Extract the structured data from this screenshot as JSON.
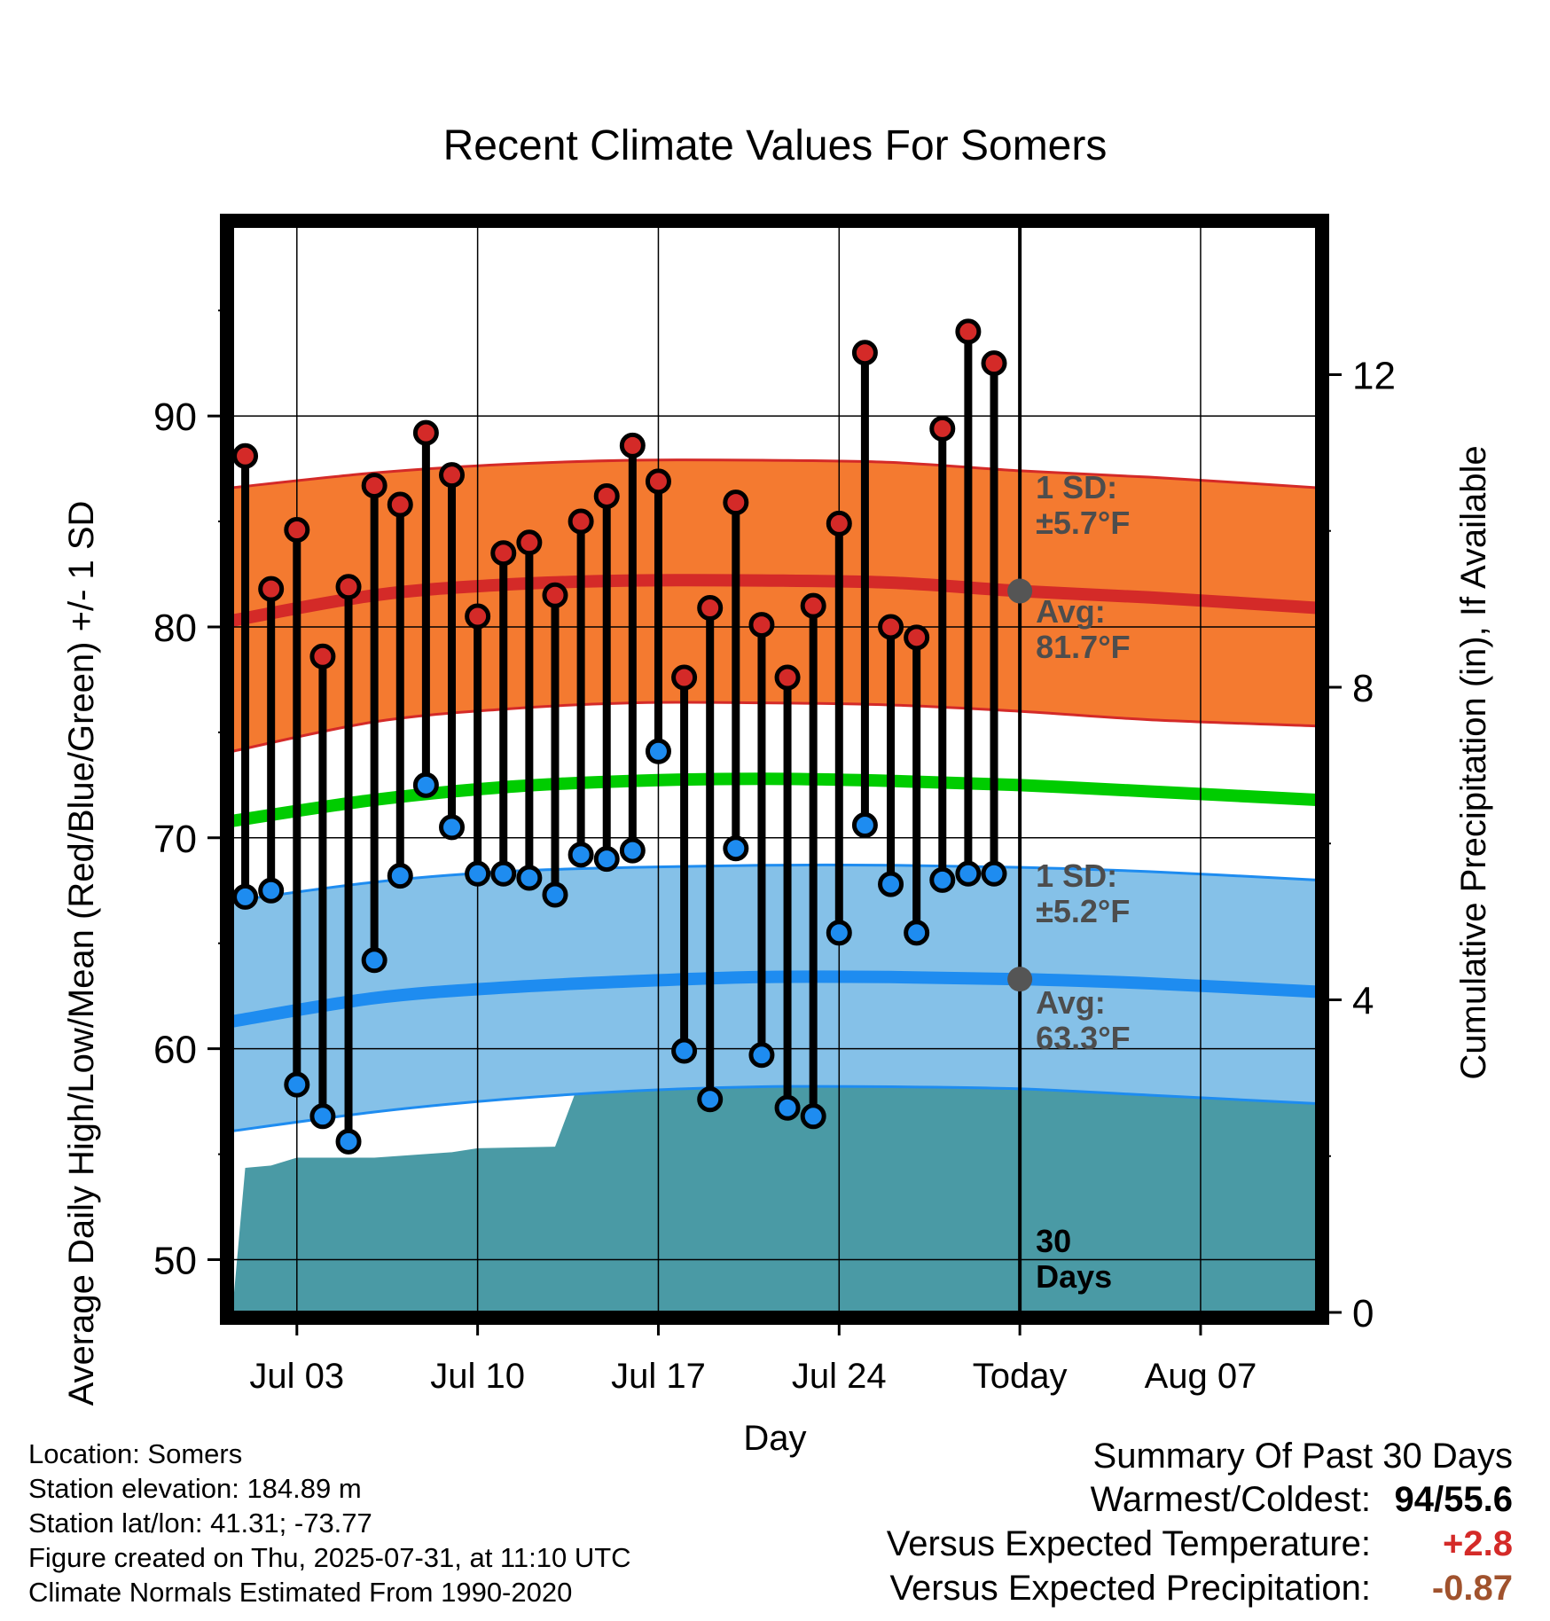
{
  "chart_data": {
    "type": "line",
    "title": "Recent Climate Values For Somers",
    "xlabel": "Day",
    "ylabel": "Average Daily High/Low/Mean (Red/Blue/Green) +/- 1 SD",
    "y2label": "Cumulative Precipitation (in), If Available",
    "xlim": [
      -0.5,
      41.5
    ],
    "ylim": [
      47.5,
      99
    ],
    "y2lim": [
      0,
      13.9
    ],
    "x_ticks": [
      {
        "x": 2,
        "label": "Jul 03"
      },
      {
        "x": 9,
        "label": "Jul 10"
      },
      {
        "x": 16,
        "label": "Jul 17"
      },
      {
        "x": 23,
        "label": "Jul 24"
      },
      {
        "x": 30,
        "label": "Today"
      },
      {
        "x": 37,
        "label": "Aug 07"
      }
    ],
    "y_ticks": [
      50,
      60,
      70,
      80,
      90
    ],
    "y2_ticks": [
      0,
      4,
      8,
      12
    ],
    "grid": true,
    "today_x": 30,
    "observed": {
      "x": [
        0,
        1,
        2,
        3,
        4,
        5,
        6,
        7,
        8,
        9,
        10,
        11,
        12,
        13,
        14,
        15,
        16,
        17,
        18,
        19,
        20,
        21,
        22,
        23,
        24,
        25,
        26,
        27,
        28,
        29
      ],
      "high": [
        88.1,
        81.8,
        84.6,
        78.6,
        81.9,
        86.7,
        85.8,
        89.2,
        87.2,
        80.5,
        83.5,
        84,
        81.5,
        85,
        86.2,
        88.6,
        86.9,
        77.6,
        80.9,
        85.9,
        80.1,
        77.6,
        81,
        84.9,
        93,
        80,
        79.5,
        89.4,
        94,
        92.5
      ],
      "low": [
        67.2,
        67.5,
        58.3,
        56.8,
        55.6,
        64.2,
        68.2,
        72.5,
        70.5,
        68.3,
        68.3,
        68.1,
        67.3,
        69.2,
        69,
        69.4,
        74.1,
        59.9,
        57.6,
        69.5,
        59.7,
        57.2,
        56.8,
        65.5,
        70.6,
        67.8,
        65.5,
        68,
        68.3,
        68.3
      ]
    },
    "normal_high": {
      "x": [
        -0.5,
        5,
        10,
        15,
        20,
        25,
        30,
        35,
        41.5
      ],
      "mean": [
        80.3,
        81.5,
        82,
        82.2,
        82.2,
        82.1,
        81.7,
        81.4,
        80.9
      ],
      "upper": [
        86.6,
        87.3,
        87.7,
        87.9,
        87.9,
        87.8,
        87.4,
        87.1,
        86.6
      ],
      "lower": [
        74.1,
        75.5,
        76.1,
        76.4,
        76.4,
        76.3,
        76,
        75.6,
        75.3
      ]
    },
    "normal_mean": {
      "x": [
        -0.5,
        5,
        10,
        15,
        20,
        25,
        30,
        35,
        41.5
      ],
      "mean": [
        70.8,
        71.8,
        72.4,
        72.7,
        72.8,
        72.7,
        72.5,
        72.2,
        71.8
      ]
    },
    "normal_low": {
      "x": [
        -0.5,
        5,
        10,
        15,
        20,
        25,
        30,
        35,
        41.5
      ],
      "mean": [
        61.3,
        62.4,
        62.9,
        63.2,
        63.4,
        63.4,
        63.3,
        63.1,
        62.7
      ],
      "upper": [
        67,
        67.9,
        68.4,
        68.6,
        68.7,
        68.7,
        68.6,
        68.4,
        68
      ],
      "lower": [
        56.1,
        57,
        57.6,
        58,
        58.2,
        58.2,
        58.1,
        57.8,
        57.4
      ]
    },
    "precip_cumulative": {
      "x": [
        -0.5,
        0,
        1,
        2,
        3,
        5,
        8,
        9,
        12,
        13,
        23,
        24,
        25,
        26,
        30,
        41.5
      ],
      "values": [
        0,
        1.85,
        1.88,
        1.98,
        1.98,
        1.98,
        2.05,
        2.1,
        2.12,
        3,
        3,
        3.2,
        3.2,
        3.25,
        3.25,
        3.25
      ]
    },
    "annotations": {
      "high_sd": [
        "1 SD:",
        "±5.7°F"
      ],
      "high_avg": [
        "Avg:",
        "81.7°F"
      ],
      "low_sd": [
        "1 SD:",
        "±5.2°F"
      ],
      "low_avg": [
        "Avg:",
        "63.3°F"
      ],
      "days": [
        "30",
        "Days"
      ]
    },
    "colors": {
      "high_band": "#f47a30",
      "high_line": "#d42a28",
      "mean_line": "#00cc00",
      "low_band": "#85c1e8",
      "low_line": "#1e8cf0",
      "precip": "#4a9aa5",
      "high_dot": "#d42a28",
      "low_dot": "#1e8cf0",
      "today_dot": "#555555",
      "annotation_text": "#4d4d4d"
    }
  },
  "station_info": [
    "Location: Somers",
    "Station elevation: 184.89 m",
    "Station lat/lon: 41.31; -73.77",
    "Figure created on Thu, 2025-07-31, at 11:10 UTC",
    "Climate Normals Estimated From 1990-2020"
  ],
  "summary": {
    "title": "Summary Of Past 30 Days",
    "warmest_label": "Warmest/Coldest:",
    "warmest_value": "94/55.6",
    "temp_label": "Versus Expected Temperature:",
    "temp_value": "+2.8",
    "temp_color": "#d42a28",
    "precip_label": "Versus Expected Precipitation:",
    "precip_value": "-0.87",
    "precip_color": "#a0522d"
  }
}
